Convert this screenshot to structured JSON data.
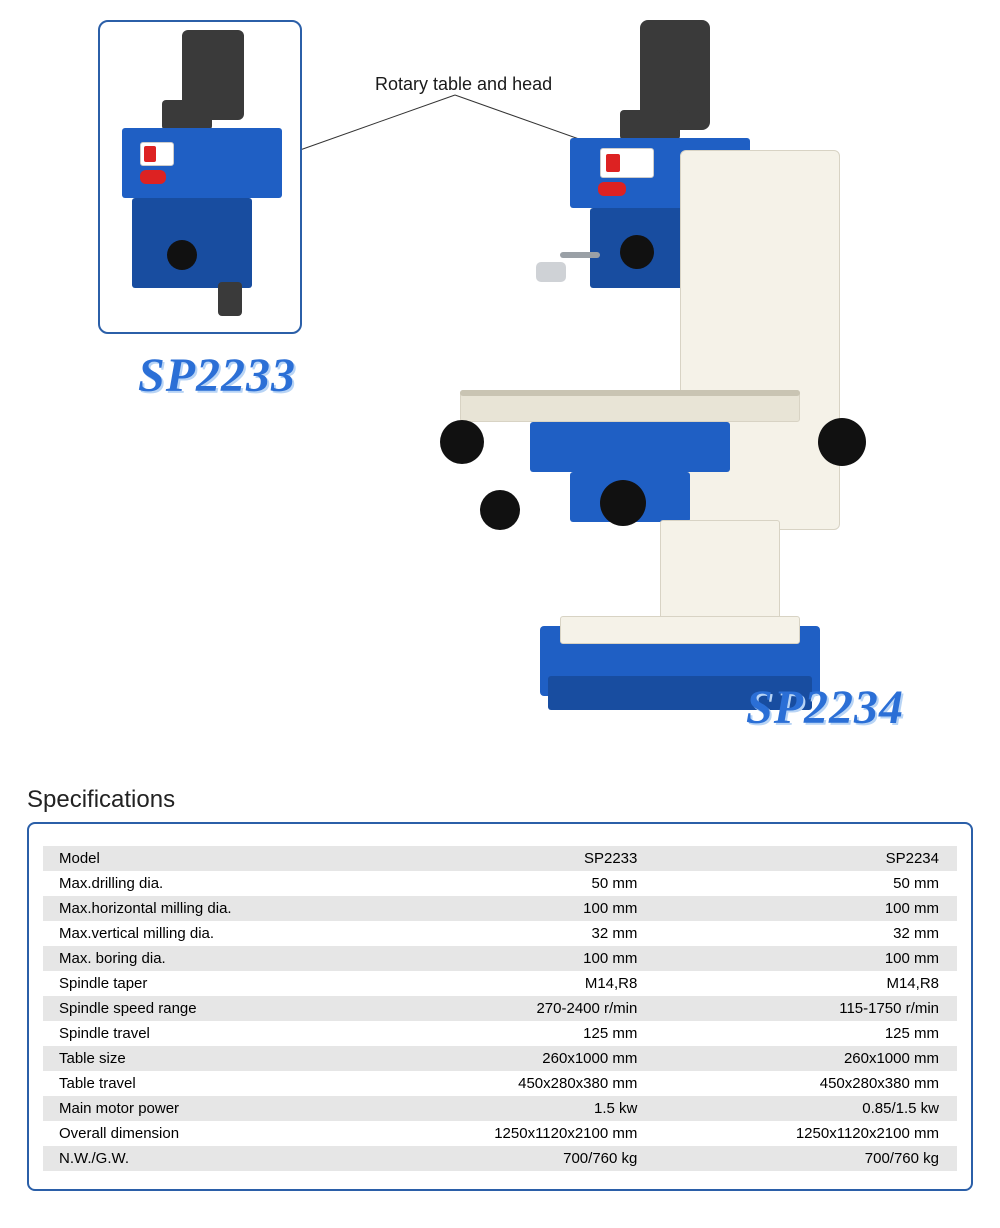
{
  "callout_label": "Rotary table and head",
  "model_labels": {
    "left": "SP2233",
    "right": "SP2234"
  },
  "specs": {
    "title": "Specifications",
    "title_fontsize": 24,
    "border_color": "#2b5fa8",
    "row_odd_bg": "#e6e6e6",
    "row_even_bg": "#ffffff",
    "font_size": 15,
    "columns": [
      "Model",
      "SP2233",
      "SP2234"
    ],
    "column_align": [
      "left",
      "right",
      "right"
    ],
    "rows": [
      [
        "Model",
        "SP2233",
        "SP2234"
      ],
      [
        "Max.drilling dia.",
        "50 mm",
        "50 mm"
      ],
      [
        "Max.horizontal milling dia.",
        "100 mm",
        "100 mm"
      ],
      [
        "Max.vertical milling dia.",
        "32 mm",
        "32 mm"
      ],
      [
        "Max. boring dia.",
        "100 mm",
        "100 mm"
      ],
      [
        "Spindle taper",
        "M14,R8",
        "M14,R8"
      ],
      [
        "Spindle speed range",
        "270-2400 r/min",
        "115-1750 r/min"
      ],
      [
        "Spindle travel",
        "125 mm",
        "125 mm"
      ],
      [
        "Table size",
        "260x1000 mm",
        "260x1000 mm"
      ],
      [
        "Table travel",
        "450x280x380 mm",
        "450x280x380 mm"
      ],
      [
        "Main motor power",
        "1.5 kw",
        "0.85/1.5 kw"
      ],
      [
        "Overall dimension",
        "1250x1120x2100 mm",
        "1250x1120x2100 mm"
      ],
      [
        "N.W./G.W.",
        "700/760 kg",
        "700/760 kg"
      ]
    ]
  },
  "illustration": {
    "machine_color_primary": "#1f5fc4",
    "machine_color_body": "#f5f2e8",
    "motor_color": "#3a3a3a",
    "brand_badge_color": "#d22222"
  }
}
